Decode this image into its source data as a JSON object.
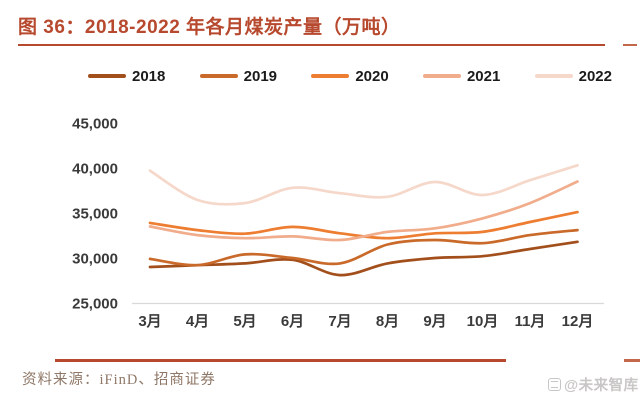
{
  "figure": {
    "title": "图 36：2018-2022 年各月煤炭产量（万吨）",
    "accent_color": "#B7492E"
  },
  "chart_data": {
    "type": "line",
    "title": "2018-2022 年各月煤炭产量（万吨）",
    "categories": [
      "3月",
      "4月",
      "5月",
      "6月",
      "7月",
      "8月",
      "9月",
      "10月",
      "11月",
      "12月"
    ],
    "series": [
      {
        "name": "2018",
        "color": "#A24F1C",
        "values": [
          29000,
          29200,
          29400,
          29800,
          28100,
          29400,
          30000,
          30200,
          31000,
          31800
        ]
      },
      {
        "name": "2019",
        "color": "#C96A2A",
        "values": [
          29900,
          29200,
          30400,
          30000,
          29400,
          31500,
          32000,
          31650,
          32550,
          33100
        ]
      },
      {
        "name": "2020",
        "color": "#ED7D31",
        "values": [
          33900,
          33100,
          32700,
          33450,
          32750,
          32200,
          32750,
          32900,
          34000,
          35100
        ]
      },
      {
        "name": "2021",
        "color": "#F0AC8B",
        "values": [
          33500,
          32550,
          32200,
          32400,
          32000,
          32900,
          33300,
          34400,
          36100,
          38500
        ]
      },
      {
        "name": "2022",
        "color": "#F5D8CA",
        "values": [
          39700,
          36450,
          36100,
          37800,
          37200,
          36800,
          38450,
          37000,
          38650,
          40300
        ]
      }
    ],
    "ylim": [
      25000,
      45000
    ],
    "ytick_step": 5000,
    "yticks": [
      "45,000",
      "40,000",
      "35,000",
      "30,000",
      "25,000"
    ],
    "grid": false,
    "legend_position": "top",
    "axis_color": "#D9D9D9",
    "tick_label_color": "#3A3A3A"
  },
  "footer": {
    "source": "资料来源：iFinD、招商证券",
    "watermark": "@未来智库"
  }
}
